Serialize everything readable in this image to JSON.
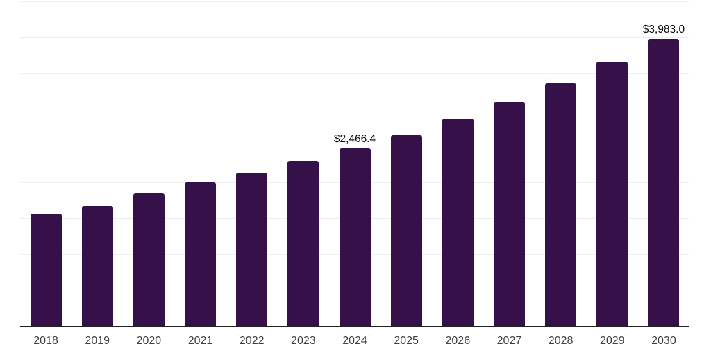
{
  "chart_data": {
    "type": "bar",
    "title": "",
    "xlabel": "",
    "ylabel": "",
    "categories": [
      "2018",
      "2019",
      "2020",
      "2021",
      "2022",
      "2023",
      "2024",
      "2025",
      "2026",
      "2027",
      "2028",
      "2029",
      "2030"
    ],
    "values": [
      1560,
      1665,
      1838,
      1996,
      2130,
      2292,
      2466.4,
      2652,
      2881,
      3110,
      3371,
      3664,
      3983
    ],
    "data_labels": [
      "",
      "",
      "",
      "",
      "",
      "",
      "$2,466.4",
      "",
      "",
      "",
      "",
      "",
      "$3,983.0"
    ],
    "ylim": [
      0,
      4500
    ],
    "gridline_step": 500,
    "grid": "horizontal-only",
    "legend_position": "none",
    "colors": {
      "bar": "#351049",
      "axis": "#1f1f1f",
      "gridline": "#ededed",
      "tick_label": "#404040",
      "data_label": "#0a0a0a",
      "background": "#ffffff"
    }
  }
}
